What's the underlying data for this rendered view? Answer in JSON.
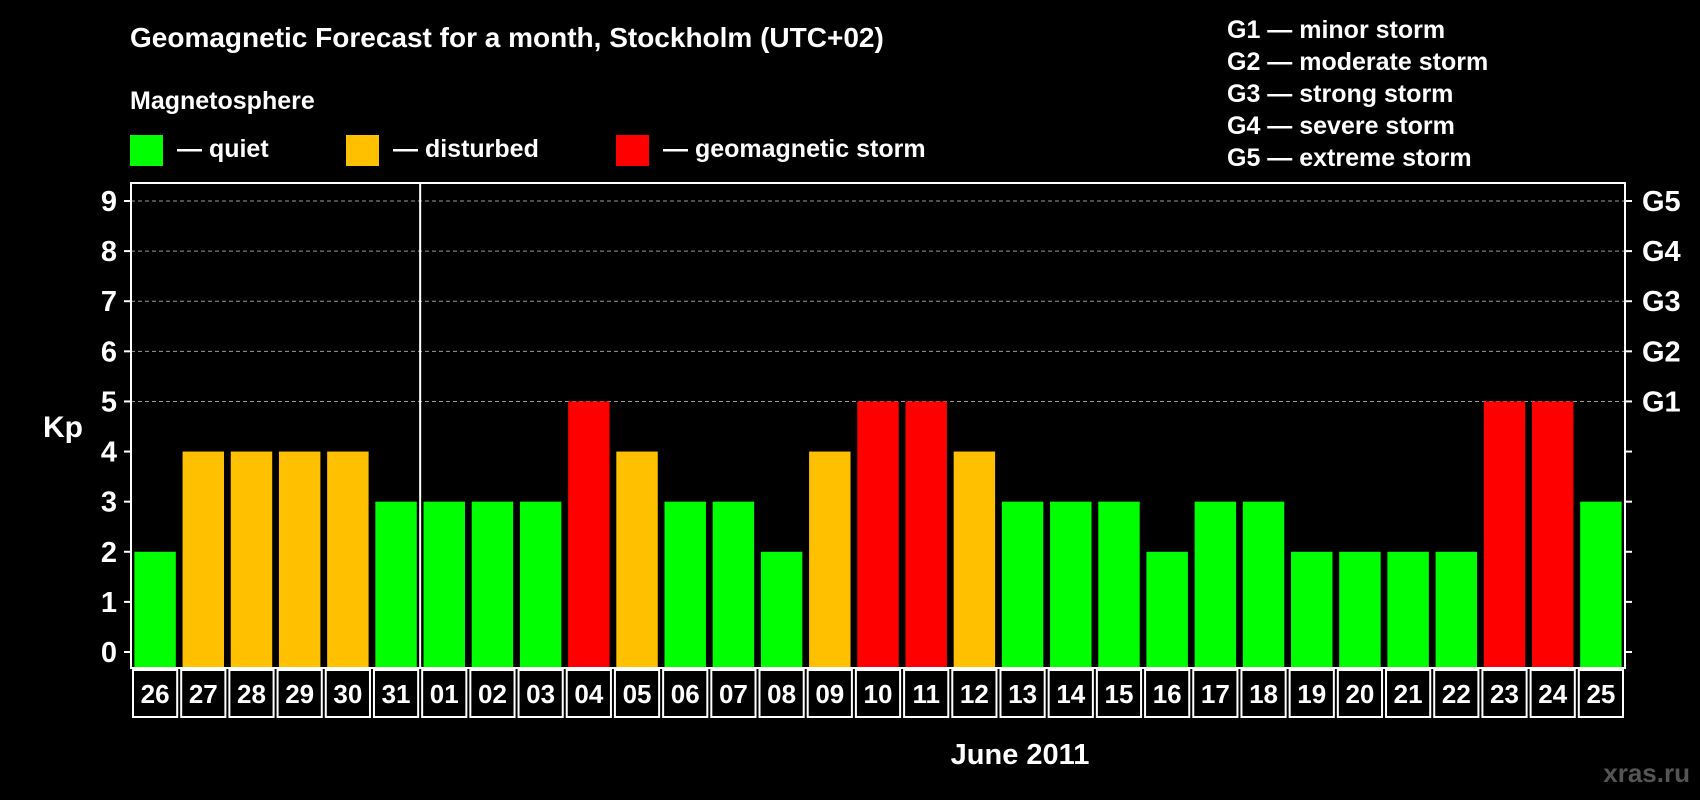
{
  "chart_data": {
    "type": "bar",
    "title": "Geomagnetic Forecast for a month, Stockholm (UTC+02)",
    "legend_title": "Magnetosphere",
    "legend": [
      {
        "key": "quiet",
        "label": "— quiet",
        "color": "#00ff00"
      },
      {
        "key": "disturbed",
        "label": "— disturbed",
        "color": "#ffc000"
      },
      {
        "key": "storm",
        "label": "— geomagnetic storm",
        "color": "#ff0000"
      }
    ],
    "g_legend": [
      "G1 — minor storm",
      "G2 — moderate storm",
      "G3 — strong storm",
      "G4 — severe storm",
      "G5 — extreme storm"
    ],
    "ylabel": "Kp",
    "xlabel": "June 2011",
    "ylim": [
      0,
      9
    ],
    "yticks": [
      "0",
      "1",
      "2",
      "3",
      "4",
      "5",
      "6",
      "7",
      "8",
      "9"
    ],
    "right_ticks": [
      {
        "value": 5,
        "label": "G1"
      },
      {
        "value": 6,
        "label": "G2"
      },
      {
        "value": 7,
        "label": "G3"
      },
      {
        "value": 8,
        "label": "G4"
      },
      {
        "value": 9,
        "label": "G5"
      }
    ],
    "month_divider_after_index": 5,
    "categories": [
      "26",
      "27",
      "28",
      "29",
      "30",
      "31",
      "01",
      "02",
      "03",
      "04",
      "05",
      "06",
      "07",
      "08",
      "09",
      "10",
      "11",
      "12",
      "13",
      "14",
      "15",
      "16",
      "17",
      "18",
      "19",
      "20",
      "21",
      "22",
      "23",
      "24",
      "25"
    ],
    "values": [
      2,
      4,
      4,
      4,
      4,
      3,
      3,
      3,
      3,
      5,
      4,
      3,
      3,
      2,
      4,
      5,
      5,
      4,
      3,
      3,
      3,
      2,
      3,
      3,
      2,
      2,
      2,
      2,
      5,
      5,
      3
    ],
    "colors": {
      "quiet": "#00ff00",
      "disturbed": "#ffc000",
      "storm": "#ff0000"
    },
    "thresholds": {
      "disturbed": 4,
      "storm": 5
    }
  },
  "watermark": "xras.ru"
}
